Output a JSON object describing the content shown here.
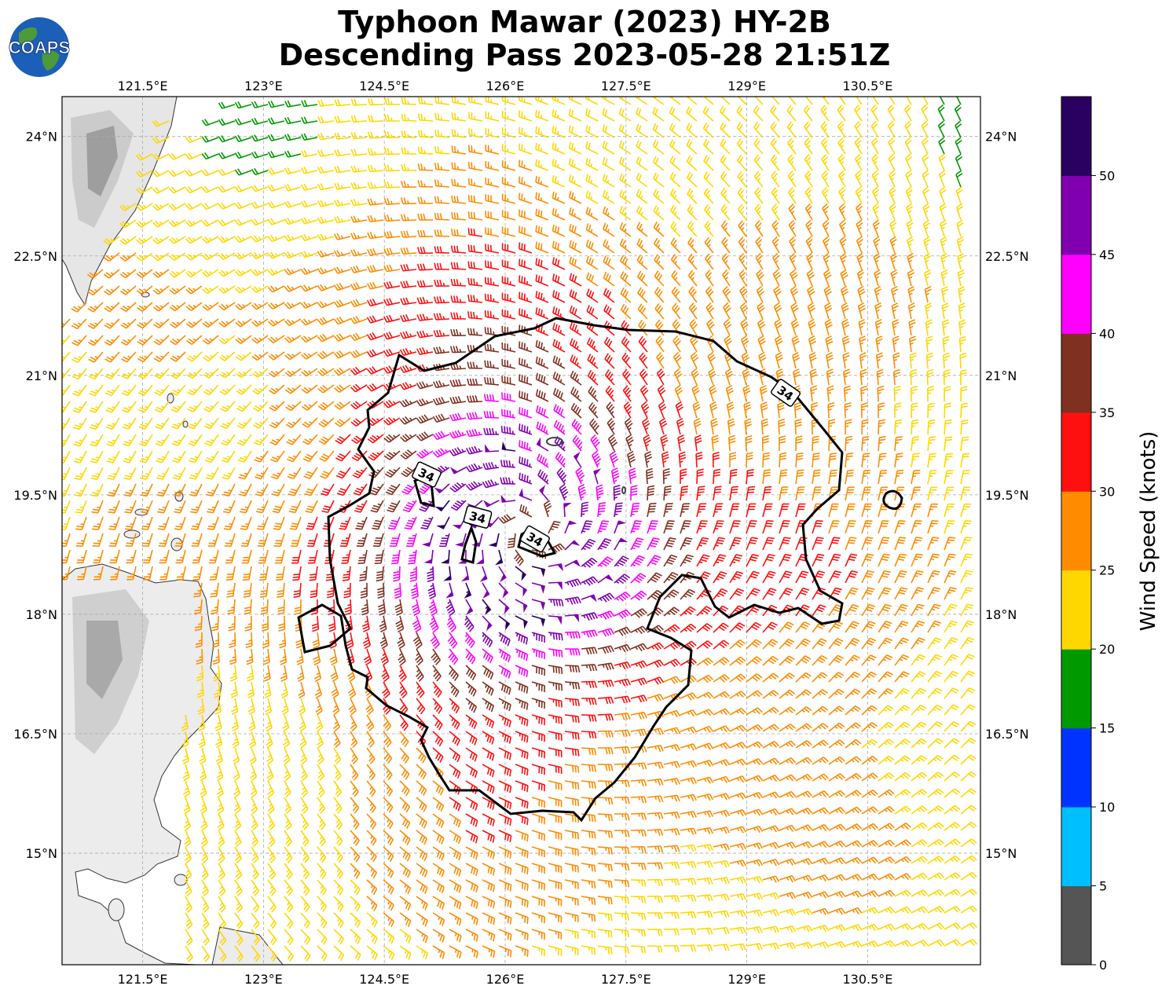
{
  "title": {
    "line1": "Typhoon Mawar (2023) HY-2B",
    "line2": "Descending Pass 2023-05-28 21:51Z"
  },
  "logo": {
    "text": "COAPS",
    "icon": "globe-icon"
  },
  "map": {
    "lon_range": [
      120.5,
      131.9
    ],
    "lat_range": [
      13.6,
      24.5
    ],
    "lon_ticks": [
      "121.5°E",
      "123°E",
      "124.5°E",
      "126°E",
      "127.5°E",
      "129°E",
      "130.5°E"
    ],
    "lon_tick_values": [
      121.5,
      123,
      124.5,
      126,
      127.5,
      129,
      130.5
    ],
    "lat_ticks": [
      "24°N",
      "22.5°N",
      "21°N",
      "19.5°N",
      "18°N",
      "16.5°N",
      "15°N"
    ],
    "lat_tick_values": [
      24,
      22.5,
      21,
      19.5,
      18,
      16.5,
      15
    ],
    "gridlines": true,
    "storm_center": {
      "lon": 126.3,
      "lat": 19.05
    },
    "contour_value_labels": [
      "34",
      "34",
      "34",
      "34"
    ]
  },
  "colorbar": {
    "label": "Wind Speed (knots)",
    "ticks": [
      "0",
      "5",
      "10",
      "15",
      "20",
      "25",
      "30",
      "35",
      "40",
      "45",
      "50"
    ],
    "colors": [
      "#555555",
      "#00bfff",
      "#0033ff",
      "#009900",
      "#ffd700",
      "#ff8c00",
      "#ff1010",
      "#803020",
      "#ff00ff",
      "#8000b0",
      "#2a0060"
    ]
  }
}
